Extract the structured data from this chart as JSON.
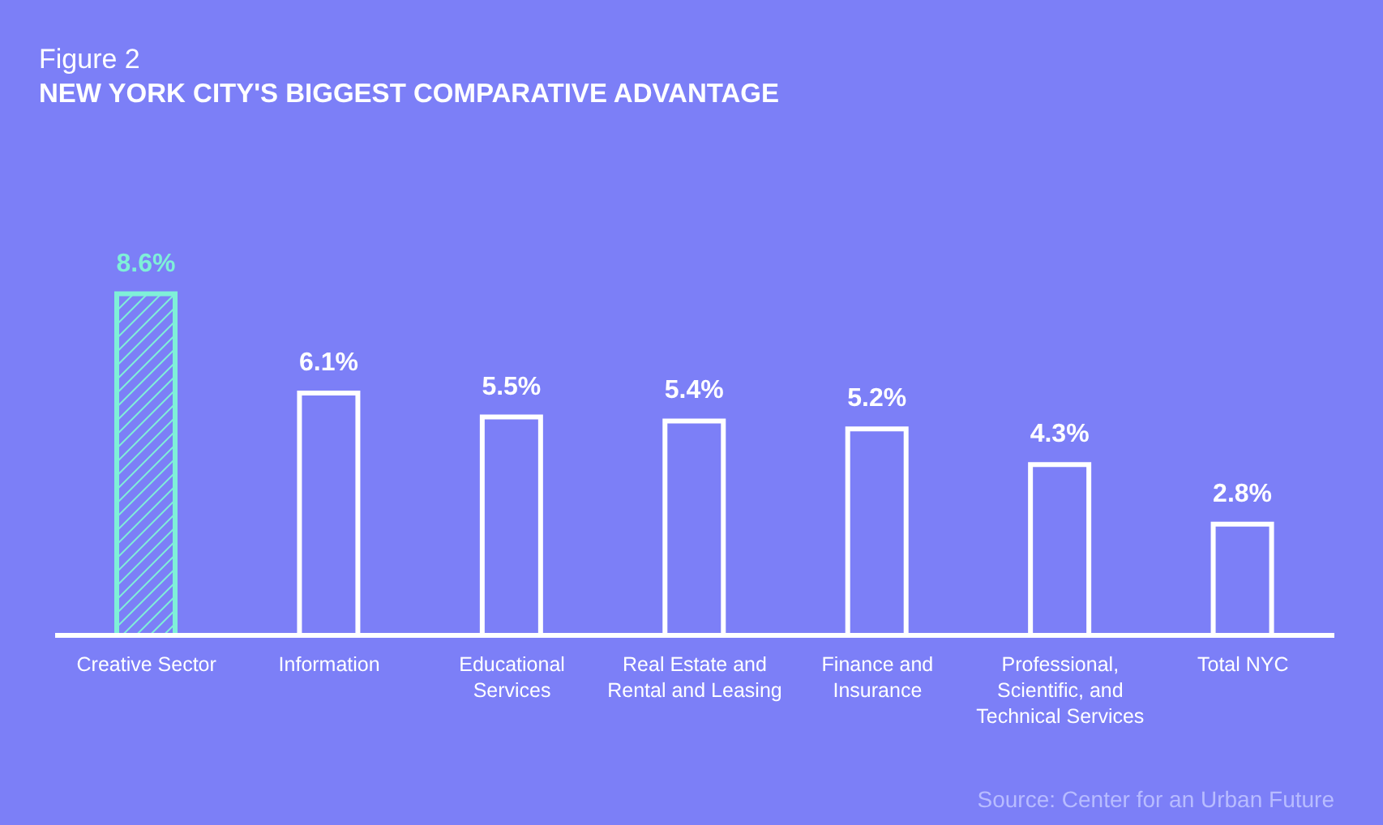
{
  "chart_data": {
    "type": "bar",
    "title": "Figure 2",
    "subtitle": "NEW YORK CITY'S BIGGEST COMPARATIVE ADVANTAGE",
    "categories": [
      "Creative Sector",
      "Information",
      "Educational Services",
      "Real Estate and Rental and Leasing",
      "Finance and Insurance",
      "Professional, Scientific, and Technical Services",
      "Total NYC"
    ],
    "values": [
      8.6,
      6.1,
      5.5,
      5.4,
      5.2,
      4.3,
      2.8
    ],
    "value_labels": [
      "8.6%",
      "6.1%",
      "5.5%",
      "5.4%",
      "5.2%",
      "4.3%",
      "2.8%"
    ],
    "colors": [
      "#7ff0d8",
      "#ffffff",
      "#ffffff",
      "#ffffff",
      "#ffffff",
      "#ffffff",
      "#ffffff"
    ],
    "tick_labels": "x",
    "grid": false,
    "annotations": [
      "Source: Center for an Urban Future"
    ]
  }
}
